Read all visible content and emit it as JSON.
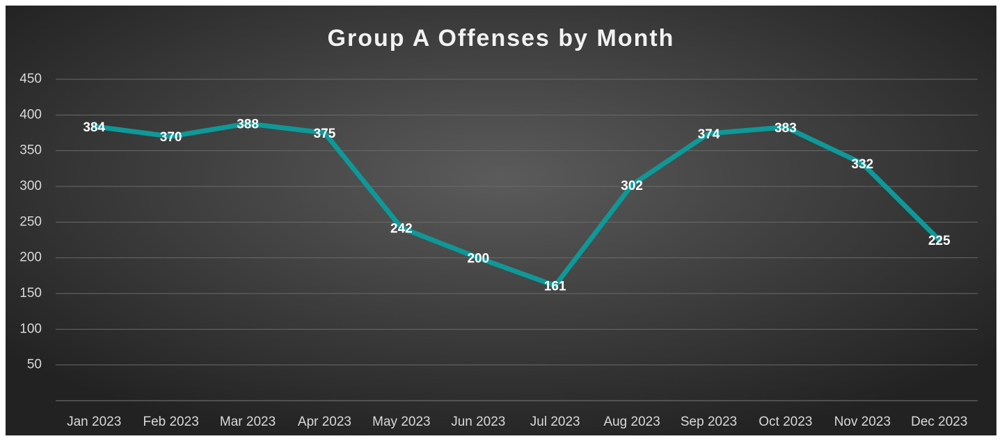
{
  "chart_data": {
    "type": "line",
    "title": "Group A Offenses by Month",
    "categories": [
      "Jan 2023",
      "Feb 2023",
      "Mar 2023",
      "Apr 2023",
      "May 2023",
      "Jun 2023",
      "Jul 2023",
      "Aug 2023",
      "Sep 2023",
      "Oct 2023",
      "Nov 2023",
      "Dec 2023"
    ],
    "values": [
      384,
      370,
      388,
      375,
      242,
      200,
      161,
      302,
      374,
      383,
      332,
      225
    ],
    "color": "#0e9898",
    "ylim": [
      0,
      450
    ],
    "yticks": [
      50,
      100,
      150,
      200,
      250,
      300,
      350,
      400,
      450
    ],
    "grid": true
  }
}
